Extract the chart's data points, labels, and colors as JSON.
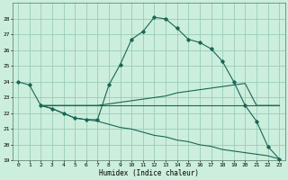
{
  "title": "",
  "xlabel": "Humidex (Indice chaleur)",
  "bg_color": "#cceedd",
  "grid_color": "#99ccbb",
  "line_color": "#1a6655",
  "ylim": [
    19,
    29
  ],
  "xlim": [
    -0.5,
    23.5
  ],
  "yticks": [
    19,
    20,
    21,
    22,
    23,
    24,
    25,
    26,
    27,
    28
  ],
  "xticks": [
    0,
    1,
    2,
    3,
    4,
    5,
    6,
    7,
    8,
    9,
    10,
    11,
    12,
    13,
    14,
    15,
    16,
    17,
    18,
    19,
    20,
    21,
    22,
    23
  ],
  "line1_x": [
    0,
    1,
    2,
    3,
    4,
    5,
    6,
    7,
    8,
    9,
    10,
    11,
    12,
    13,
    14,
    15,
    16,
    17,
    18,
    19,
    20,
    21,
    22,
    23
  ],
  "line1_y": [
    24.0,
    23.8,
    22.5,
    22.3,
    22.0,
    21.7,
    21.6,
    21.6,
    23.8,
    25.1,
    26.7,
    27.2,
    28.1,
    28.0,
    27.4,
    26.7,
    26.5,
    26.1,
    25.3,
    24.0,
    22.5,
    21.5,
    19.9,
    19.1
  ],
  "line2_x": [
    2,
    3,
    4,
    5,
    6,
    7,
    8,
    9,
    10,
    11,
    12,
    13,
    14,
    15,
    16,
    17,
    18,
    19,
    20,
    21,
    22,
    23
  ],
  "line2_y": [
    22.5,
    22.5,
    22.5,
    22.5,
    22.5,
    22.5,
    22.6,
    22.7,
    22.8,
    22.9,
    23.0,
    23.1,
    23.3,
    23.4,
    23.5,
    23.6,
    23.7,
    23.8,
    23.9,
    22.5,
    22.5,
    22.5
  ],
  "line3_x": [
    2,
    3,
    4,
    5,
    6,
    7,
    8,
    9,
    10,
    11,
    12,
    13,
    14,
    15,
    16,
    17,
    18,
    19,
    20,
    21,
    22,
    23
  ],
  "line3_y": [
    22.5,
    22.5,
    22.5,
    22.5,
    22.5,
    22.5,
    22.5,
    22.5,
    22.5,
    22.5,
    22.5,
    22.5,
    22.5,
    22.5,
    22.5,
    22.5,
    22.5,
    22.5,
    22.5,
    22.5,
    22.5,
    22.5
  ],
  "line4_x": [
    2,
    3,
    4,
    5,
    6,
    7,
    8,
    9,
    10,
    11,
    12,
    13,
    14,
    15,
    16,
    17,
    18,
    19,
    20,
    21,
    22,
    23
  ],
  "line4_y": [
    22.5,
    22.3,
    22.0,
    21.7,
    21.6,
    21.5,
    21.3,
    21.1,
    21.0,
    20.8,
    20.6,
    20.5,
    20.3,
    20.2,
    20.0,
    19.9,
    19.7,
    19.6,
    19.5,
    19.4,
    19.3,
    19.1
  ]
}
